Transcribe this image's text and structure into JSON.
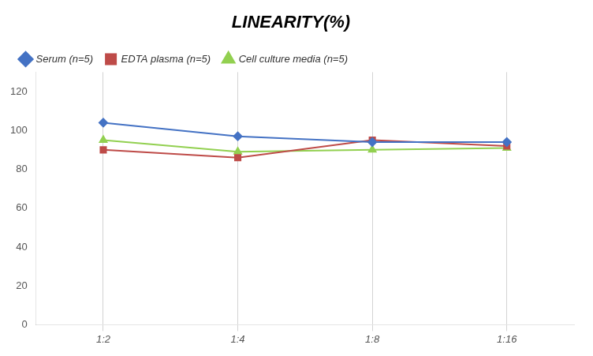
{
  "chart_data": {
    "type": "line",
    "title": "LINEARITY(%)",
    "categories": [
      "1:2",
      "1:4",
      "1:8",
      "1:16"
    ],
    "series": [
      {
        "name": "Serum (n=5)",
        "color": "#4472C4",
        "marker": "diamond",
        "values": [
          104,
          97,
          94,
          94
        ]
      },
      {
        "name": "EDTA plasma (n=5)",
        "color": "#BE4B48",
        "marker": "square",
        "values": [
          90,
          86,
          95,
          92
        ]
      },
      {
        "name": "Cell culture media (n=5)",
        "color": "#92D050",
        "marker": "triangle",
        "values": [
          95,
          89,
          90,
          91
        ]
      }
    ],
    "ylim": [
      0,
      130
    ],
    "yticks": [
      0,
      20,
      40,
      60,
      80,
      100,
      120
    ],
    "grid": "x",
    "legend": "top"
  }
}
